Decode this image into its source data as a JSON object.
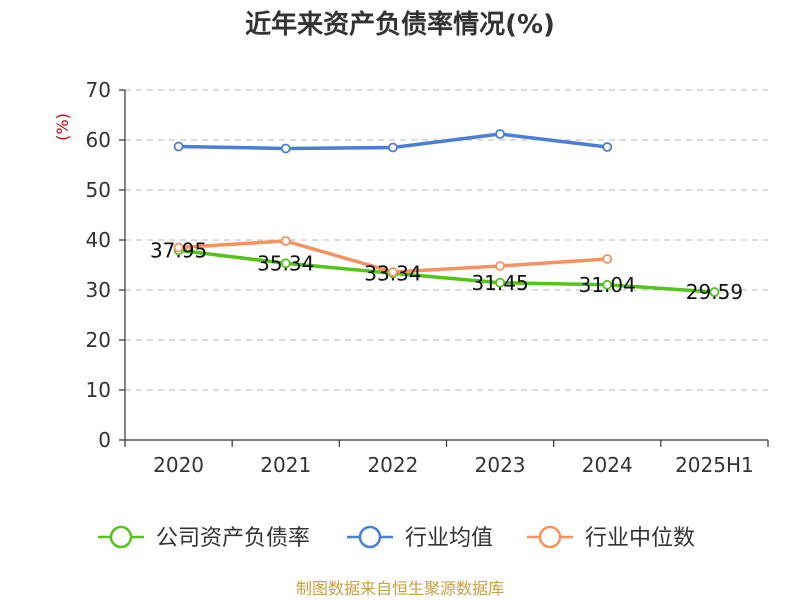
{
  "chart_data": {
    "type": "line",
    "title": "近年来资产负债率情况(%)",
    "ylabel": "(%)",
    "categories": [
      "2020",
      "2021",
      "2022",
      "2023",
      "2024",
      "2025H1"
    ],
    "ylim": [
      0,
      70
    ],
    "yticks": [
      0,
      10,
      20,
      30,
      40,
      50,
      60,
      70
    ],
    "grid": true,
    "legend_position": "bottom",
    "series": [
      {
        "name": "公司资产负债率",
        "color": "#52c41a",
        "values": [
          37.95,
          35.34,
          33.34,
          31.45,
          31.04,
          29.59
        ],
        "labels": [
          "37.95",
          "35.34",
          "33.34",
          "31.45",
          "31.04",
          "29.59"
        ]
      },
      {
        "name": "行业均值",
        "color": "#4a7fd6",
        "values": [
          58.7,
          58.3,
          58.5,
          61.2,
          58.6,
          null
        ]
      },
      {
        "name": "行业中位数",
        "color": "#f5925e",
        "values": [
          38.5,
          39.8,
          33.6,
          34.8,
          36.2,
          null
        ]
      }
    ]
  },
  "source": "制图数据来自恒生聚源数据库"
}
